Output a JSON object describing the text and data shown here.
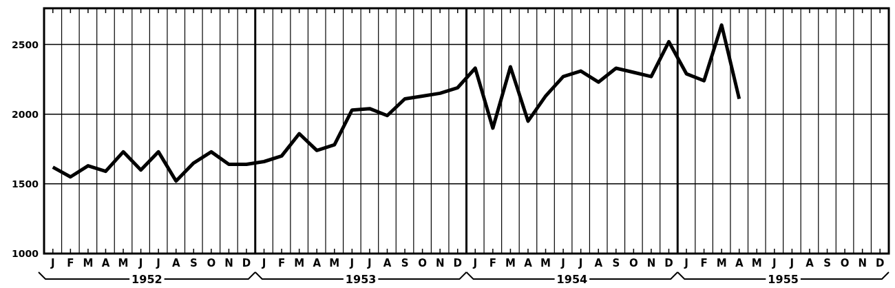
{
  "chart_data": {
    "type": "line",
    "categories": [
      "J",
      "F",
      "M",
      "A",
      "M",
      "J",
      "J",
      "A",
      "S",
      "O",
      "N",
      "D",
      "J",
      "F",
      "M",
      "A",
      "M",
      "J",
      "J",
      "A",
      "S",
      "O",
      "N",
      "D",
      "J",
      "F",
      "M",
      "A",
      "M",
      "J",
      "J",
      "A",
      "S",
      "O",
      "N",
      "D",
      "J",
      "F",
      "M",
      "A",
      "M",
      "J",
      "J",
      "A",
      "S",
      "O",
      "N",
      "D"
    ],
    "series": [
      {
        "color": "#000000",
        "values": [
          1620,
          1550,
          1630,
          1590,
          1730,
          1600,
          1730,
          1520,
          1650,
          1730,
          1640,
          1640,
          1660,
          1700,
          1860,
          1740,
          1780,
          2030,
          2040,
          1990,
          2110,
          2130,
          2150,
          2190,
          2330,
          1900,
          2340,
          1950,
          2130,
          2270,
          2310,
          2230,
          2330,
          2300,
          2270,
          2520,
          2290,
          2240,
          2640,
          2110,
          null,
          null,
          null,
          null,
          null,
          null,
          null,
          null
        ]
      }
    ],
    "ylim": [
      1000,
      2760
    ],
    "yticks": [
      1000,
      1500,
      2000,
      2500
    ],
    "grid": true,
    "marker": "none",
    "line_style": "solid",
    "annotations": [
      "1952",
      "1953",
      "1954",
      "1955"
    ]
  }
}
